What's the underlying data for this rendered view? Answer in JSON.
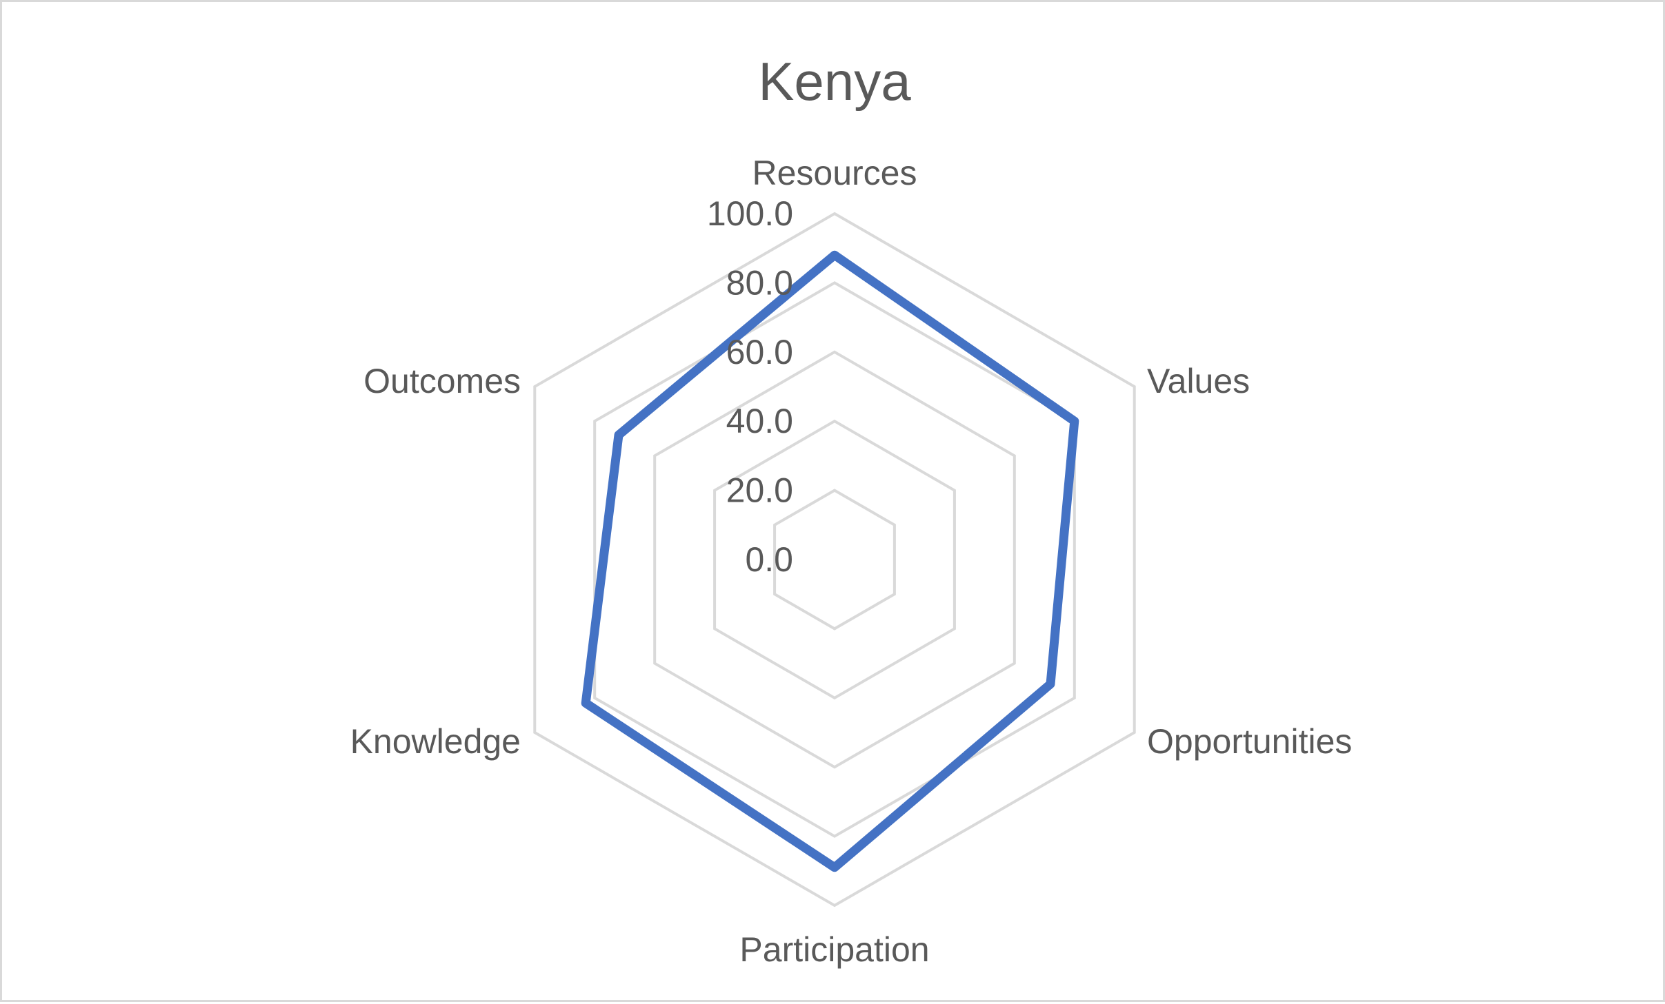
{
  "chart_data": {
    "type": "radar",
    "title": "Kenya",
    "axes": [
      "Resources",
      "Values",
      "Opportunities",
      "Participation",
      "Knowledge",
      "Outcomes"
    ],
    "radial_ticks": [
      "0.0",
      "20.0",
      "40.0",
      "60.0",
      "80.0",
      "100.0"
    ],
    "rlim": [
      0,
      100
    ],
    "grid": true,
    "legend": "none",
    "series": [
      {
        "values": [
          88,
          80,
          72,
          89,
          83,
          72
        ]
      }
    ],
    "colors": {
      "series": "#4472c4",
      "grid": "#d9d9d9",
      "text": "#595959"
    }
  }
}
